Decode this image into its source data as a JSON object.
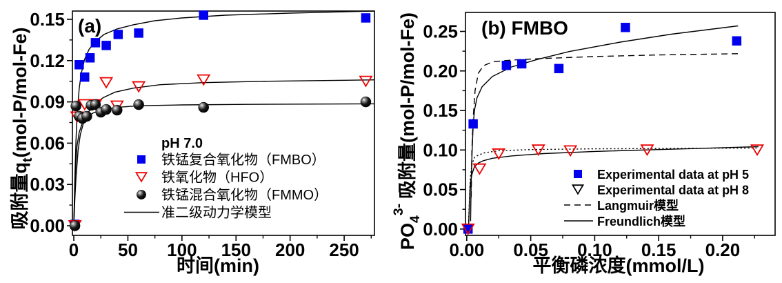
{
  "figure": {
    "background": "#ffffff"
  },
  "chart_data": [
    {
      "id": "a",
      "type": "scatter",
      "title": "(a)",
      "xlabel": "时间(min)",
      "ylabel_parts": [
        {
          "text": "吸附量q"
        },
        {
          "text": "t",
          "pos": "sub"
        },
        {
          "text": "(mol-P/mol-Fe)"
        }
      ],
      "xlim": [
        -1.3,
        278
      ],
      "ylim": [
        -0.007,
        0.156
      ],
      "grid": false,
      "x_ticks": [
        {
          "v": 0,
          "label": "0"
        },
        {
          "v": 50,
          "label": "50"
        },
        {
          "v": 100,
          "label": "100"
        },
        {
          "v": 150,
          "label": "150"
        },
        {
          "v": 200,
          "label": "200"
        },
        {
          "v": 250,
          "label": "250"
        }
      ],
      "x_minor": [
        25,
        75,
        125,
        175,
        225,
        275
      ],
      "y_ticks": [
        {
          "v": 0.0,
          "label": "0.00"
        },
        {
          "v": 0.03,
          "label": "0.03"
        },
        {
          "v": 0.06,
          "label": "0.06"
        },
        {
          "v": 0.09,
          "label": "0.09"
        },
        {
          "v": 0.12,
          "label": "0.12"
        },
        {
          "v": 0.15,
          "label": "0.15"
        }
      ],
      "y_minor": [
        0.015,
        0.045,
        0.075,
        0.105,
        0.135
      ],
      "legend": {
        "position": "inside-right-middle",
        "header": "pH 7.0",
        "items": [
          {
            "marker": "square-filled",
            "marker_color": "#0000ee",
            "label": "铁锰复合氧化物（FMBO）"
          },
          {
            "marker": "triangle-down-open",
            "marker_color": "#ee0000",
            "label": "铁氧化物（HFO）"
          },
          {
            "marker": "sphere",
            "marker_color": "#000000",
            "label": "铁锰混合氧化物（FMMO）"
          },
          {
            "marker": "line",
            "line_style": "solid",
            "marker_color": "#000000",
            "label": "准二级动力学模型"
          }
        ]
      },
      "series": [
        {
          "name": "FMBO",
          "marker": "square-filled",
          "color": "#0000ee",
          "points": [
            [
              1,
              0.001
            ],
            [
              5,
              0.117
            ],
            [
              10,
              0.108
            ],
            [
              15,
              0.122
            ],
            [
              20,
              0.133
            ],
            [
              30,
              0.131
            ],
            [
              41,
              0.139
            ],
            [
              60,
              0.14
            ],
            [
              120,
              0.153
            ],
            [
              270,
              0.151
            ]
          ]
        },
        {
          "name": "HFO",
          "marker": "triangle-down-open",
          "color": "#ee0000",
          "points": [
            [
              1,
              0.0
            ],
            [
              3,
              0.079
            ],
            [
              10,
              0.088
            ],
            [
              20,
              0.088
            ],
            [
              30,
              0.104
            ],
            [
              40,
              0.087
            ],
            [
              60,
              0.101
            ],
            [
              120,
              0.106
            ],
            [
              270,
              0.105
            ]
          ]
        },
        {
          "name": "FMMO",
          "marker": "sphere",
          "color": "#000000",
          "points": [
            [
              1,
              0.0
            ],
            [
              2,
              0.087
            ],
            [
              5,
              0.0795
            ],
            [
              8,
              0.078
            ],
            [
              12,
              0.0795
            ],
            [
              16,
              0.0875
            ],
            [
              20,
              0.088
            ],
            [
              25,
              0.0825
            ],
            [
              30,
              0.0845
            ],
            [
              40,
              0.084
            ],
            [
              60,
              0.088
            ],
            [
              120,
              0.086
            ],
            [
              270,
              0.09
            ]
          ]
        }
      ],
      "curves": [
        {
          "name": "FMBO-pseudo-second-order-fit",
          "style": "solid",
          "color": "#000000",
          "points": [
            [
              0,
              0
            ],
            [
              1,
              0.035
            ],
            [
              2,
              0.062
            ],
            [
              3,
              0.08
            ],
            [
              5,
              0.1
            ],
            [
              7,
              0.111
            ],
            [
              10,
              0.121
            ],
            [
              14,
              0.128
            ],
            [
              20,
              0.134
            ],
            [
              28,
              0.139
            ],
            [
              40,
              0.143
            ],
            [
              55,
              0.146
            ],
            [
              75,
              0.149
            ],
            [
              100,
              0.151
            ],
            [
              140,
              0.153
            ],
            [
              200,
              0.1545
            ],
            [
              278,
              0.156
            ]
          ]
        },
        {
          "name": "HFO-pseudo-second-order-fit",
          "style": "solid",
          "color": "#000000",
          "points": [
            [
              0,
              0
            ],
            [
              1,
              0.02
            ],
            [
              2,
              0.035
            ],
            [
              4,
              0.055
            ],
            [
              6,
              0.066
            ],
            [
              9,
              0.075
            ],
            [
              13,
              0.082
            ],
            [
              19,
              0.088
            ],
            [
              27,
              0.093
            ],
            [
              38,
              0.097
            ],
            [
              55,
              0.1
            ],
            [
              80,
              0.1025
            ],
            [
              120,
              0.104
            ],
            [
              180,
              0.105
            ],
            [
              278,
              0.106
            ]
          ]
        },
        {
          "name": "FMMO-pseudo-second-order-fit",
          "style": "solid",
          "color": "#000000",
          "points": [
            [
              0,
              0
            ],
            [
              1,
              0.03
            ],
            [
              2,
              0.048
            ],
            [
              3,
              0.058
            ],
            [
              5,
              0.068
            ],
            [
              8,
              0.075
            ],
            [
              12,
              0.079
            ],
            [
              18,
              0.082
            ],
            [
              27,
              0.0845
            ],
            [
              40,
              0.086
            ],
            [
              60,
              0.0872
            ],
            [
              100,
              0.0878
            ],
            [
              160,
              0.0882
            ],
            [
              278,
              0.0886
            ]
          ]
        }
      ]
    },
    {
      "id": "b",
      "type": "scatter",
      "title": "(b) FMBO",
      "xlabel": "平衡磷浓度(mmol/L)",
      "ylabel_parts": [
        {
          "text": "PO"
        },
        {
          "text": "4",
          "pos": "sub"
        },
        {
          "text": "3-",
          "pos": "sup"
        },
        {
          "text": "吸附量(mol-P/mol-Fe)",
          "dx": 7
        }
      ],
      "xlim": [
        -0.001,
        0.241
      ],
      "ylim": [
        -0.008,
        0.274
      ],
      "grid": false,
      "x_ticks": [
        {
          "v": 0.0,
          "label": "0.00"
        },
        {
          "v": 0.05,
          "label": "0.05"
        },
        {
          "v": 0.1,
          "label": "0.10"
        },
        {
          "v": 0.15,
          "label": "0.15"
        },
        {
          "v": 0.2,
          "label": "0.20"
        }
      ],
      "x_minor": [
        0.025,
        0.075,
        0.125,
        0.175,
        0.225
      ],
      "y_ticks": [
        {
          "v": 0.0,
          "label": "0.00"
        },
        {
          "v": 0.05,
          "label": "0.05"
        },
        {
          "v": 0.1,
          "label": "0.10"
        },
        {
          "v": 0.15,
          "label": "0.15"
        },
        {
          "v": 0.2,
          "label": "0.20"
        },
        {
          "v": 0.25,
          "label": "0.25"
        }
      ],
      "y_minor": [
        0.025,
        0.075,
        0.125,
        0.175,
        0.225
      ],
      "legend": {
        "position": "inside-right-lower",
        "header": "",
        "items": [
          {
            "marker": "square-filled",
            "marker_color": "#0000ee",
            "label": "Experimental data at pH 5"
          },
          {
            "marker": "triangle-down-open",
            "marker_color": "#000000",
            "label": "Experimental data at pH 8"
          },
          {
            "marker": "line",
            "line_style": "dashed",
            "marker_color": "#000000",
            "label": "Langmuir模型"
          },
          {
            "marker": "line",
            "line_style": "solid",
            "marker_color": "#000000",
            "label": "Freundlich模型"
          }
        ]
      },
      "series": [
        {
          "name": "pH 5",
          "marker": "square-filled",
          "color": "#0000ee",
          "points": [
            [
              0.001,
              0.0
            ],
            [
              0.005,
              0.133
            ],
            [
              0.031,
              0.207
            ],
            [
              0.043,
              0.209
            ],
            [
              0.072,
              0.203
            ],
            [
              0.124,
              0.255
            ],
            [
              0.211,
              0.238
            ]
          ]
        },
        {
          "name": "pH 8",
          "marker": "triangle-down-open",
          "color": "#ee0000",
          "points": [
            [
              0.001,
              0.0
            ],
            [
              0.01,
              0.076
            ],
            [
              0.025,
              0.095
            ],
            [
              0.056,
              0.1
            ],
            [
              0.081,
              0.099
            ],
            [
              0.141,
              0.1
            ],
            [
              0.227,
              0.1
            ]
          ]
        }
      ],
      "curves": [
        {
          "name": "Langmuir-fit-pH5",
          "style": "dashed",
          "color": "#000000",
          "points": [
            [
              0.0035,
              0.04
            ],
            [
              0.004,
              0.1
            ],
            [
              0.005,
              0.14
            ],
            [
              0.0065,
              0.175
            ],
            [
              0.009,
              0.197
            ],
            [
              0.013,
              0.2065
            ],
            [
              0.02,
              0.2115
            ],
            [
              0.035,
              0.2138
            ],
            [
              0.06,
              0.2158
            ],
            [
              0.1,
              0.2182
            ],
            [
              0.15,
              0.2202
            ],
            [
              0.212,
              0.2218
            ]
          ]
        },
        {
          "name": "Freundlich-fit-pH5",
          "style": "solid",
          "color": "#000000",
          "points": [
            [
              0.003,
              0.01
            ],
            [
              0.0035,
              0.06
            ],
            [
              0.004,
              0.09
            ],
            [
              0.0045,
              0.112
            ],
            [
              0.005,
              0.13
            ],
            [
              0.006,
              0.15
            ],
            [
              0.008,
              0.166
            ],
            [
              0.012,
              0.18
            ],
            [
              0.02,
              0.193
            ],
            [
              0.035,
              0.205
            ],
            [
              0.055,
              0.2145
            ],
            [
              0.08,
              0.2245
            ],
            [
              0.12,
              0.2365
            ],
            [
              0.16,
              0.2465
            ],
            [
              0.212,
              0.257
            ]
          ]
        },
        {
          "name": "Langmuir-fit-pH8",
          "style": "dotted",
          "color": "#000000",
          "points": [
            [
              0.0015,
              0.01
            ],
            [
              0.002,
              0.035
            ],
            [
              0.0025,
              0.055
            ],
            [
              0.003,
              0.068
            ],
            [
              0.004,
              0.0815
            ],
            [
              0.006,
              0.0905
            ],
            [
              0.009,
              0.0935
            ],
            [
              0.014,
              0.0965
            ],
            [
              0.025,
              0.099
            ],
            [
              0.05,
              0.1005
            ],
            [
              0.1,
              0.1015
            ],
            [
              0.16,
              0.102
            ],
            [
              0.228,
              0.1025
            ]
          ]
        },
        {
          "name": "Freundlich-fit-pH8",
          "style": "solid",
          "color": "#000000",
          "points": [
            [
              0.0015,
              0.005
            ],
            [
              0.002,
              0.03
            ],
            [
              0.0025,
              0.05
            ],
            [
              0.003,
              0.06
            ],
            [
              0.004,
              0.069
            ],
            [
              0.006,
              0.079
            ],
            [
              0.009,
              0.0835
            ],
            [
              0.013,
              0.0865
            ],
            [
              0.02,
              0.0895
            ],
            [
              0.035,
              0.0925
            ],
            [
              0.06,
              0.0955
            ],
            [
              0.1,
              0.0982
            ],
            [
              0.15,
              0.1005
            ],
            [
              0.228,
              0.1042
            ]
          ]
        }
      ]
    }
  ]
}
